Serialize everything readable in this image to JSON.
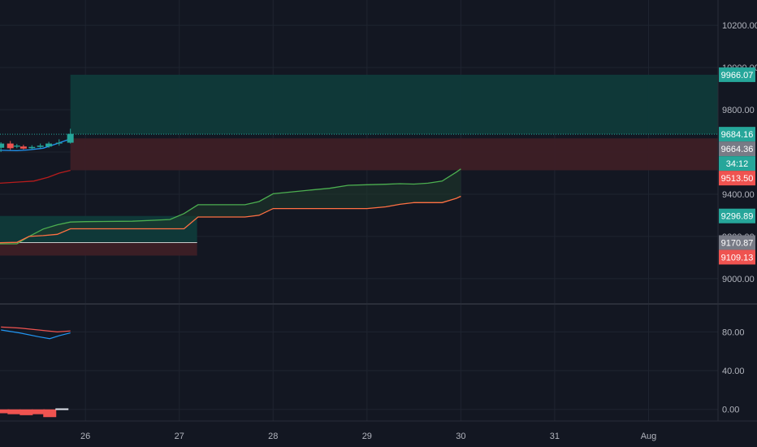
{
  "colors": {
    "background": "#131722",
    "grid": "#1f2430",
    "axis_line": "#2a2e39",
    "axis_text": "#b2b5be",
    "teal": "#26a69a",
    "red": "#ef5350",
    "green_line": "#4caf50",
    "orange_line": "#ff7043",
    "blue_line": "#2196f3",
    "gray_tag": "#787b86",
    "profit_zone": "#0f3a3a",
    "loss_zone": "#3d1f26"
  },
  "chart_data": [
    {
      "type": "candlestick",
      "panel": "price",
      "ylim": [
        8880,
        10320
      ],
      "y_ticks": [
        9000,
        9200,
        9400,
        9600,
        9800,
        10000,
        10200
      ],
      "y_tick_labels": [
        "9000.00",
        "9200.00",
        "9400.00",
        "9600.00",
        "9800.00",
        "10000.00",
        "10200.00"
      ],
      "x_ticks": [
        {
          "x": 26,
          "label": "26"
        },
        {
          "x": 27,
          "label": "27"
        },
        {
          "x": 28,
          "label": "28"
        },
        {
          "x": 29,
          "label": "29"
        },
        {
          "x": 30,
          "label": "30"
        },
        {
          "x": 31,
          "label": "31"
        },
        {
          "x": 32,
          "label": "Aug"
        }
      ],
      "xlim": [
        25.09,
        32.74
      ],
      "candles": [
        {
          "x": 25.1,
          "open": 9620,
          "high": 9646,
          "low": 9600,
          "close": 9640
        },
        {
          "x": 25.2,
          "open": 9640,
          "high": 9652,
          "low": 9610,
          "close": 9618
        },
        {
          "x": 25.27,
          "open": 9625,
          "high": 9638,
          "low": 9618,
          "close": 9630
        },
        {
          "x": 25.34,
          "open": 9626,
          "high": 9634,
          "low": 9612,
          "close": 9616
        },
        {
          "x": 25.43,
          "open": 9618,
          "high": 9632,
          "low": 9614,
          "close": 9624
        },
        {
          "x": 25.52,
          "open": 9624,
          "high": 9640,
          "low": 9618,
          "close": 9630
        },
        {
          "x": 25.61,
          "open": 9626,
          "high": 9648,
          "low": 9620,
          "close": 9640
        },
        {
          "x": 25.72,
          "open": 9640,
          "high": 9660,
          "low": 9630,
          "close": 9644
        },
        {
          "x": 25.84,
          "open": 9644,
          "high": 9710,
          "low": 9640,
          "close": 9686
        }
      ],
      "series": [
        {
          "role": "upper-line",
          "x": [
            25.09,
            25.27,
            25.4,
            25.55,
            25.7,
            25.84
          ],
          "y": [
            9608,
            9606,
            9610,
            9618,
            9640,
            9662
          ]
        },
        {
          "role": "lower-line",
          "x": [
            25.09,
            25.3,
            25.45,
            25.6,
            25.72,
            25.84
          ],
          "y": [
            9452,
            9458,
            9462,
            9480,
            9500,
            9513
          ]
        },
        {
          "role": "cloud-upper",
          "x": [
            25.09,
            25.27,
            25.4,
            25.55,
            25.7,
            25.84,
            26.0,
            26.5,
            26.9,
            27.05,
            27.2,
            27.5,
            27.7,
            27.85,
            28.0,
            28.4,
            28.6,
            28.8,
            29.0,
            29.2,
            29.35,
            29.5,
            29.65,
            29.8,
            29.95,
            30.0
          ],
          "y": [
            9165,
            9165,
            9200,
            9235,
            9255,
            9268,
            9270,
            9272,
            9280,
            9308,
            9350,
            9350,
            9350,
            9365,
            9402,
            9420,
            9428,
            9442,
            9445,
            9447,
            9450,
            9448,
            9452,
            9462,
            9504,
            9520
          ]
        },
        {
          "role": "cloud-lower",
          "x": [
            25.09,
            25.27,
            25.4,
            25.55,
            25.7,
            25.84,
            26.0,
            26.5,
            26.9,
            27.05,
            27.2,
            27.5,
            27.7,
            27.85,
            28.0,
            28.4,
            28.6,
            28.8,
            29.0,
            29.2,
            29.35,
            29.5,
            29.65,
            29.8,
            29.95,
            30.0
          ],
          "y": [
            9170,
            9172,
            9200,
            9204,
            9210,
            9236,
            9236,
            9236,
            9236,
            9236,
            9292,
            9292,
            9292,
            9300,
            9332,
            9332,
            9332,
            9332,
            9332,
            9340,
            9352,
            9360,
            9360,
            9360,
            9380,
            9390
          ]
        }
      ],
      "zones": [
        {
          "role": "profit",
          "x0": 25.84,
          "x1": 32.74,
          "y0": 9684.16,
          "y1": 9966.07
        },
        {
          "role": "loss",
          "x0": 25.84,
          "x1": 32.74,
          "y0": 9664.36,
          "y1": 9513.5
        },
        {
          "role": "profit",
          "x0": 25.09,
          "x1": 27.19,
          "y0": 9170.87,
          "y1": 9296.89
        },
        {
          "role": "loss",
          "x0": 25.09,
          "x1": 27.19,
          "y0": 9109.13,
          "y1": 9170.87
        }
      ],
      "price_tags": [
        {
          "value": 9966.07,
          "label": "9966.07",
          "color": "#26a69a"
        },
        {
          "value": 9684.16,
          "label": "9684.16",
          "color": "#26a69a"
        },
        {
          "value": 9640,
          "label": "34:12",
          "color": "#26a69a"
        },
        {
          "value": 9664.36,
          "label": "9664.36",
          "color": "#787b86"
        },
        {
          "value": 9513.5,
          "label": "9513.50",
          "color": "#ef5350"
        },
        {
          "value": 9296.89,
          "label": "9296.89",
          "color": "#26a69a"
        },
        {
          "value": 9170.87,
          "label": "9170.87",
          "color": "#787b86"
        },
        {
          "value": 9109.13,
          "label": "9109.13",
          "color": "#ef5350"
        }
      ]
    },
    {
      "type": "line",
      "panel": "oscillator",
      "ylim": [
        -12,
        108
      ],
      "y_ticks": [
        0,
        40,
        80
      ],
      "y_tick_labels": [
        "0.00",
        "40.00",
        "80.00"
      ],
      "series": [
        {
          "role": "line-red",
          "x": [
            25.1,
            25.3,
            25.5,
            25.7,
            25.84
          ],
          "y": [
            85,
            84,
            82,
            80,
            81
          ]
        },
        {
          "role": "line-blue",
          "x": [
            25.1,
            25.3,
            25.5,
            25.62,
            25.72,
            25.84
          ],
          "y": [
            82,
            79,
            75,
            73,
            76,
            79
          ]
        },
        {
          "role": "histogram",
          "x": [
            25.12,
            25.24,
            25.37,
            25.5,
            25.62,
            25.75
          ],
          "y": [
            -4,
            -5,
            -6,
            -5,
            -8,
            1
          ]
        }
      ]
    }
  ]
}
